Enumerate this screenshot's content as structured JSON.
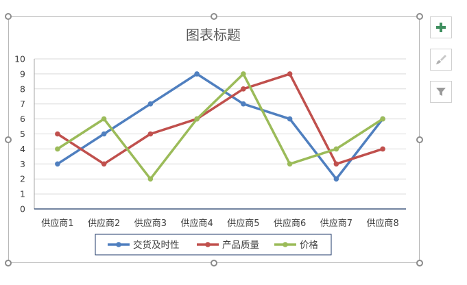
{
  "chart_data": {
    "type": "line",
    "title": "图表标题",
    "categories": [
      "供应商1",
      "供应商2",
      "供应商3",
      "供应商4",
      "供应商5",
      "供应商6",
      "供应商7",
      "供应商8"
    ],
    "series": [
      {
        "name": "交货及时性",
        "color": "#4f7fbf",
        "values": [
          3,
          5,
          7,
          9,
          7,
          6,
          2,
          6
        ]
      },
      {
        "name": "产品质量",
        "color": "#c0504d",
        "values": [
          5,
          3,
          5,
          6,
          8,
          9,
          3,
          4
        ]
      },
      {
        "name": "价格",
        "color": "#9bbb59",
        "values": [
          4,
          6,
          2,
          6,
          9,
          3,
          4,
          6
        ]
      }
    ],
    "ylim": [
      0,
      10
    ],
    "yticks": [
      0,
      1,
      2,
      3,
      4,
      5,
      6,
      7,
      8,
      9,
      10
    ],
    "grid": true,
    "legend": "bottom",
    "xlabel": "",
    "ylabel": ""
  },
  "side_buttons": [
    {
      "name": "chart-elements",
      "icon": "plus-icon"
    },
    {
      "name": "chart-styles",
      "icon": "brush-icon"
    },
    {
      "name": "chart-filters",
      "icon": "funnel-icon"
    }
  ]
}
